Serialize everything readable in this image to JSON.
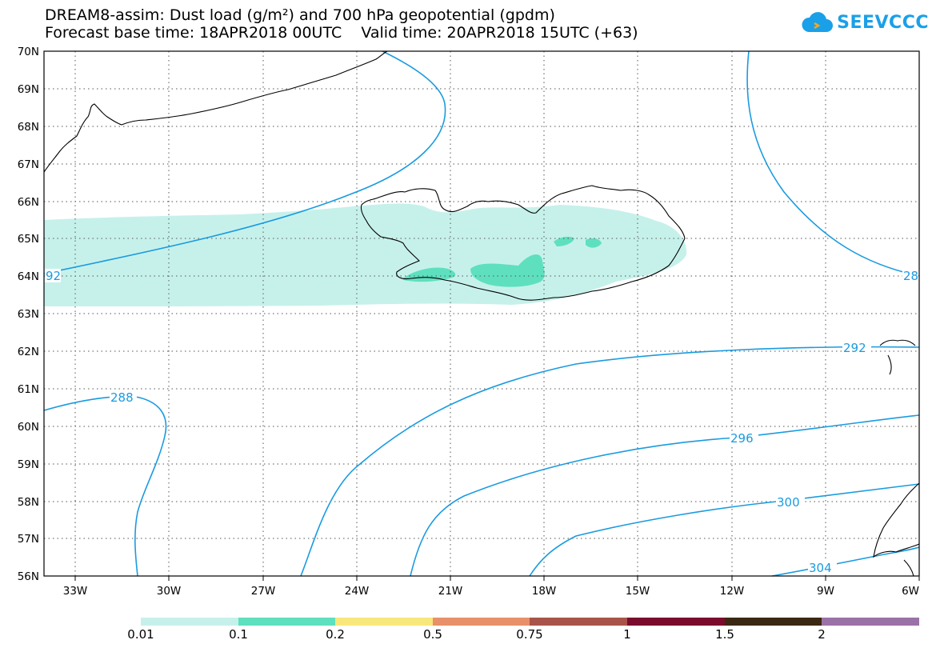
{
  "title": {
    "line1": "DREAM8-assim: Dust load (g/m²) and 700 hPa geopotential (gpdm)",
    "line2": "Forecast base time: 18APR2018 00UTC    Valid time: 20APR2018 15UTC (+63)"
  },
  "logo": {
    "text": "SEEVCCC",
    "icon": "cloud-icon",
    "color": "#1aa0e8"
  },
  "axes": {
    "lat_labels": [
      "70N",
      "69N",
      "68N",
      "67N",
      "66N",
      "65N",
      "64N",
      "63N",
      "62N",
      "61N",
      "60N",
      "59N",
      "58N",
      "57N",
      "56N"
    ],
    "lon_labels": [
      "33W",
      "30W",
      "27W",
      "24W",
      "21W",
      "18W",
      "15W",
      "12W",
      "9W",
      "6W"
    ],
    "lat_range": [
      56,
      70
    ],
    "lon_range": [
      -34.5,
      -6
    ]
  },
  "contour_labels": [
    "288",
    "292",
    "296",
    "300",
    "304",
    "92",
    "28",
    "292"
  ],
  "colorbar": {
    "colors": [
      "#c6f1eb",
      "#5ee0bf",
      "#f8e77c",
      "#e89069",
      "#a9544a",
      "#7b0b2c",
      "#3b2813",
      "#9b72a8"
    ],
    "labels": [
      "0.01",
      "0.1",
      "0.2",
      "0.5",
      "0.75",
      "1",
      "1.5",
      "2"
    ]
  },
  "colors": {
    "contour": "#1a9be0",
    "dust_light": "#c6f1eb",
    "dust_mid": "#5ee0bf",
    "coast": "#000000"
  }
}
